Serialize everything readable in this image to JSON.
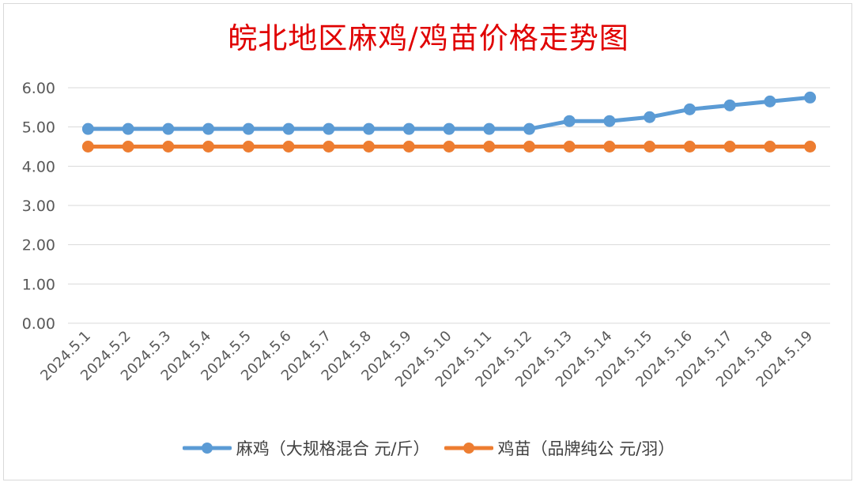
{
  "chart_data": {
    "type": "line",
    "title": "皖北地区麻鸡/鸡苗价格走势图",
    "categories": [
      "2024.5.1",
      "2024.5.2",
      "2024.5.3",
      "2024.5.4",
      "2024.5.5",
      "2024.5.6",
      "2024.5.7",
      "2024.5.8",
      "2024.5.9",
      "2024.5.10",
      "2024.5.11",
      "2024.5.12",
      "2024.5.13",
      "2024.5.14",
      "2024.5.15",
      "2024.5.16",
      "2024.5.17",
      "2024.5.18",
      "2024.5.19"
    ],
    "series": [
      {
        "name": "麻鸡（大规格混合 元/斤）",
        "color": "#5b9bd5",
        "values": [
          4.95,
          4.95,
          4.95,
          4.95,
          4.95,
          4.95,
          4.95,
          4.95,
          4.95,
          4.95,
          4.95,
          4.95,
          5.15,
          5.15,
          5.25,
          5.45,
          5.55,
          5.65,
          5.75
        ]
      },
      {
        "name": "鸡苗（品牌纯公 元/羽）",
        "color": "#ed7d31",
        "values": [
          4.5,
          4.5,
          4.5,
          4.5,
          4.5,
          4.5,
          4.5,
          4.5,
          4.5,
          4.5,
          4.5,
          4.5,
          4.5,
          4.5,
          4.5,
          4.5,
          4.5,
          4.5,
          4.5
        ]
      }
    ],
    "ylim": [
      0,
      6
    ],
    "yticks": [
      "0.00",
      "1.00",
      "2.00",
      "3.00",
      "4.00",
      "5.00",
      "6.00"
    ],
    "grid": true,
    "legend": "bottom"
  }
}
